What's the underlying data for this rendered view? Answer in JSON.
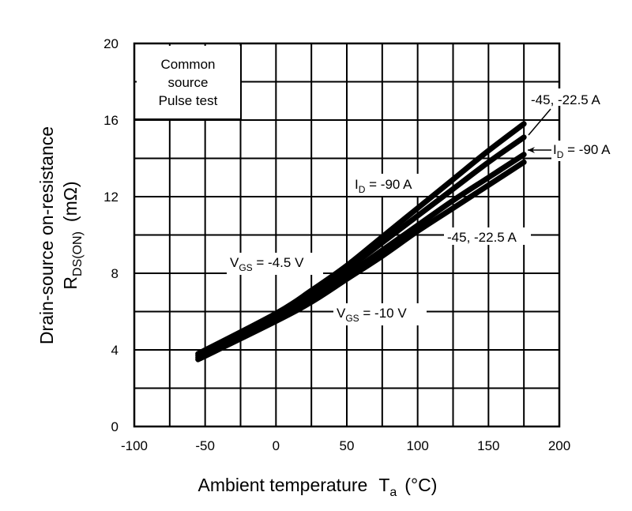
{
  "chart_data": {
    "type": "line",
    "xlabel": "Ambient temperature",
    "xlabel_symbol": "T",
    "xlabel_sub": "a",
    "xlabel_unit": "(°C)",
    "ylabel_line1": "Drain-source on-resistance",
    "ylabel_symbol": "R",
    "ylabel_sub": "DS(ON)",
    "ylabel_unit": "(mΩ)",
    "xlim": [
      -100,
      200
    ],
    "ylim": [
      0,
      20
    ],
    "xticks": [
      "-100",
      "-50",
      "0",
      "50",
      "100",
      "150",
      "200"
    ],
    "yticks": [
      "0",
      "4",
      "8",
      "12",
      "16",
      "20"
    ],
    "grid": true,
    "x": [
      -55,
      0,
      25,
      50,
      75,
      100,
      125,
      150,
      175
    ],
    "series": [
      {
        "values": [
          3.8,
          5.9,
          7.1,
          8.4,
          9.9,
          11.4,
          12.9,
          14.4,
          15.8
        ]
      },
      {
        "values": [
          3.7,
          5.8,
          6.9,
          8.2,
          9.6,
          11.0,
          12.4,
          13.8,
          15.1
        ]
      },
      {
        "values": [
          3.6,
          5.6,
          6.7,
          7.9,
          9.2,
          10.5,
          11.8,
          13.0,
          14.2
        ]
      },
      {
        "values": [
          3.5,
          5.5,
          6.5,
          7.7,
          8.9,
          10.2,
          11.4,
          12.6,
          13.8
        ]
      }
    ],
    "conditions": [
      "Common",
      "source",
      "Pulse test"
    ],
    "annotations": {
      "top_right": "-45, -22.5 A",
      "id90_right_prefix": "I",
      "id90_right_sub": "D",
      "id90_right_value": " = -90 A",
      "id90_mid_prefix": "I",
      "id90_mid_sub": "D",
      "id90_mid_value": " = -90 A",
      "lower_right": "-45, -22.5 A",
      "vgs45_prefix": "V",
      "vgs45_sub": "GS",
      "vgs45_value": " = -4.5 V",
      "vgs10_prefix": "V",
      "vgs10_sub": "GS",
      "vgs10_value": " = -10 V"
    },
    "colors": {
      "line": "#000000",
      "grid": "#000000",
      "background": "#ffffff"
    }
  }
}
